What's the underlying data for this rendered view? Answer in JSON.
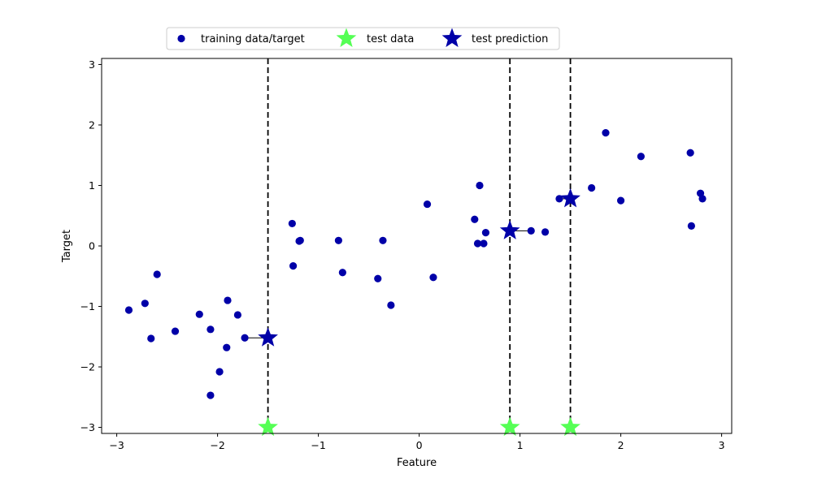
{
  "chart_data": {
    "type": "scatter",
    "xlabel": "Feature",
    "ylabel": "Target",
    "xlim": [
      -3.15,
      3.1
    ],
    "ylim": [
      -3.1,
      3.1
    ],
    "xticks": [
      -3,
      -2,
      -1,
      0,
      1,
      2,
      3
    ],
    "yticks": [
      -3,
      -2,
      -1,
      0,
      1,
      2,
      3
    ],
    "grid": false,
    "legend_position": "top, outside plot area",
    "colors": {
      "training": "#0000a8",
      "test_data": "#55ff55",
      "test_prediction": "#0000a8",
      "vlines": "#000000"
    },
    "legend": [
      {
        "label": "training data/target",
        "marker": "circle",
        "color": "#0000a8"
      },
      {
        "label": "test data",
        "marker": "star",
        "color": "#55ff55"
      },
      {
        "label": "test prediction",
        "marker": "star",
        "color": "#0000a8"
      }
    ],
    "training": {
      "x": [
        -2.88,
        -2.72,
        -2.66,
        -2.6,
        -2.42,
        -2.18,
        -2.07,
        -2.07,
        -1.98,
        -1.91,
        -1.9,
        -1.8,
        -1.73,
        -1.26,
        -1.25,
        -1.19,
        -1.18,
        -0.8,
        -0.76,
        -0.41,
        -0.36,
        -0.28,
        0.08,
        0.14,
        0.55,
        0.58,
        0.6,
        0.64,
        0.66,
        1.11,
        1.25,
        1.39,
        1.71,
        1.85,
        2.0,
        2.2,
        2.69,
        2.7,
        2.79,
        2.81
      ],
      "y": [
        -1.06,
        -0.95,
        -1.53,
        -0.47,
        -1.41,
        -1.13,
        -1.38,
        -2.47,
        -2.08,
        -1.68,
        -0.9,
        -1.14,
        -1.52,
        0.37,
        -0.33,
        0.08,
        0.09,
        0.09,
        -0.44,
        -0.54,
        0.09,
        -0.98,
        0.69,
        -0.52,
        0.44,
        0.04,
        1.0,
        0.04,
        0.22,
        0.25,
        0.23,
        0.78,
        0.96,
        1.87,
        0.75,
        1.48,
        1.54,
        0.33,
        0.87,
        0.78
      ]
    },
    "test_data": {
      "x": [
        -1.5,
        0.9,
        1.5
      ],
      "y": [
        -3,
        -3,
        -3
      ]
    },
    "test_prediction": {
      "x": [
        -1.5,
        0.9,
        1.5
      ],
      "y": [
        -1.52,
        0.25,
        0.78
      ]
    },
    "vertical_lines_x": [
      -1.5,
      0.9,
      1.5
    ]
  }
}
